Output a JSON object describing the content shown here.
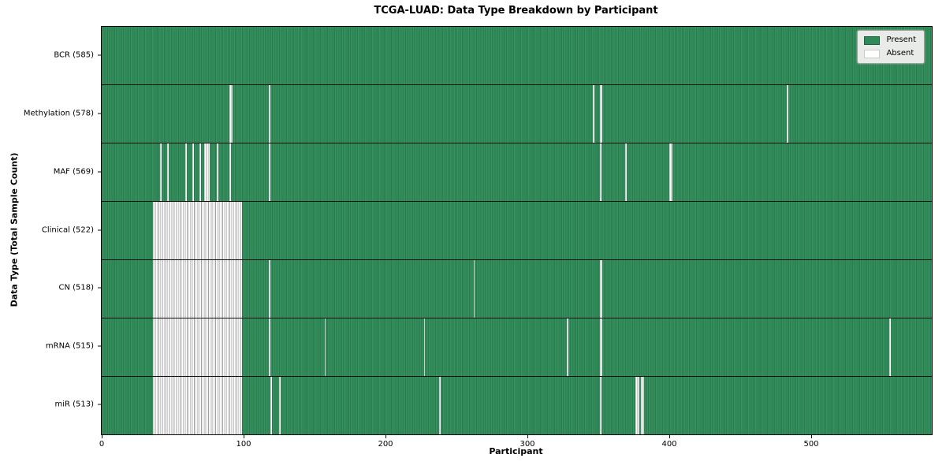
{
  "chart_data": {
    "type": "heatmap",
    "title": "TCGA-LUAD: Data Type Breakdown by Participant",
    "xlabel": "Participant",
    "ylabel": "Data Type (Total Sample Count)",
    "x_max": 585,
    "x_ticks": [
      0,
      100,
      200,
      300,
      400,
      500
    ],
    "grid": "row separators only",
    "legend_position": "upper right",
    "legend": [
      {
        "label": "Present",
        "color": "#2e8b57"
      },
      {
        "label": "Absent",
        "color": "#ffffff"
      }
    ],
    "colors": {
      "present": "#2e8b57",
      "present_edge_dark": "#236f47",
      "present_edge_light": "#43986a",
      "absent": "#ffffff",
      "absent_edge": "#a0a0a0"
    },
    "rows": [
      {
        "label": "BCR (585)",
        "data_type": "BCR",
        "present_count": 585,
        "absent_count": 0,
        "absent_ranges": []
      },
      {
        "label": "Methylation (578)",
        "data_type": "Methylation",
        "present_count": 578,
        "absent_count": 7,
        "absent_ranges": [
          [
            90,
            91
          ],
          [
            118,
            118
          ],
          [
            346,
            346
          ],
          [
            351,
            352
          ],
          [
            483,
            483
          ]
        ]
      },
      {
        "label": "MAF (569)",
        "data_type": "MAF",
        "present_count": 569,
        "absent_count": 16,
        "absent_ranges": [
          [
            41,
            41
          ],
          [
            46,
            46
          ],
          [
            59,
            59
          ],
          [
            64,
            64
          ],
          [
            69,
            69
          ],
          [
            72,
            75
          ],
          [
            81,
            81
          ],
          [
            90,
            90
          ],
          [
            118,
            118
          ],
          [
            351,
            351
          ],
          [
            369,
            369
          ],
          [
            400,
            401
          ]
        ]
      },
      {
        "label": "Clinical (522)",
        "data_type": "Clinical",
        "present_count": 522,
        "absent_count": 63,
        "absent_ranges": [
          [
            36,
            98
          ]
        ]
      },
      {
        "label": "CN (518)",
        "data_type": "CN",
        "present_count": 518,
        "absent_count": 67,
        "absent_ranges": [
          [
            36,
            98
          ],
          [
            118,
            118
          ],
          [
            262,
            262
          ],
          [
            351,
            352
          ]
        ]
      },
      {
        "label": "mRNA (515)",
        "data_type": "mRNA",
        "present_count": 515,
        "absent_count": 70,
        "absent_ranges": [
          [
            36,
            98
          ],
          [
            118,
            118
          ],
          [
            157,
            157
          ],
          [
            227,
            227
          ],
          [
            328,
            328
          ],
          [
            351,
            352
          ],
          [
            555,
            555
          ]
        ]
      },
      {
        "label": "miR (513)",
        "data_type": "miR",
        "present_count": 513,
        "absent_count": 72,
        "absent_ranges": [
          [
            36,
            98
          ],
          [
            119,
            119
          ],
          [
            125,
            125
          ],
          [
            238,
            238
          ],
          [
            351,
            351
          ],
          [
            376,
            378
          ],
          [
            380,
            381
          ]
        ]
      }
    ]
  }
}
